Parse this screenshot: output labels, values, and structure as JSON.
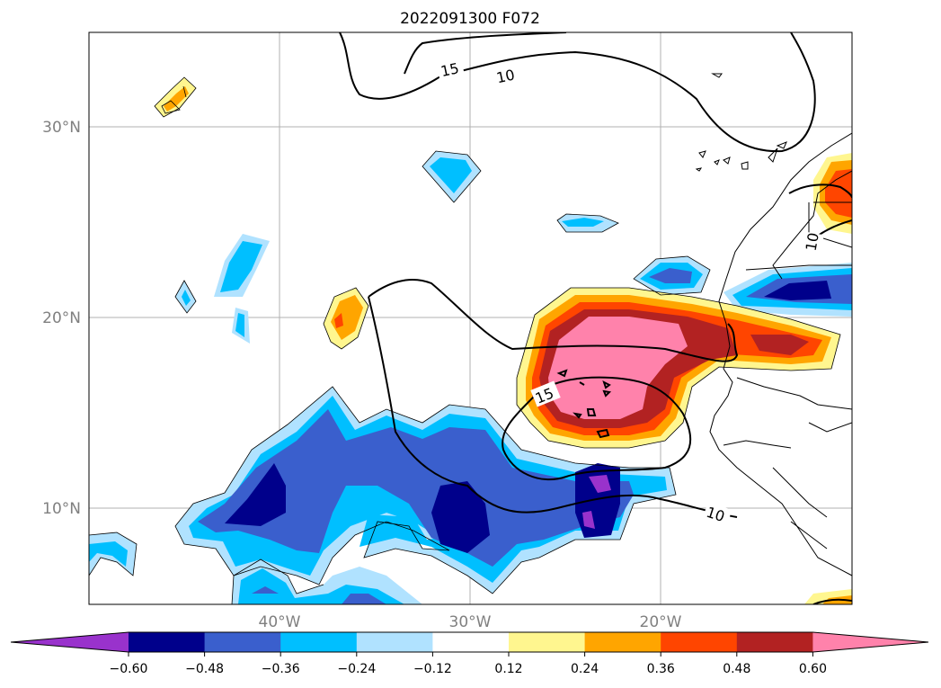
{
  "title": "2022091300 F072",
  "lat_ticks": [
    "30°N",
    "20°N",
    "10°N"
  ],
  "lon_ticks": [
    "40°W",
    "30°W",
    "20°W"
  ],
  "contour_labels": [
    "15",
    "10",
    "15",
    "10",
    "10"
  ],
  "colorbar": {
    "colors": [
      "#9932cc",
      "#00008b",
      "#3a5fcd",
      "#00bfff",
      "#b0e2ff",
      "#ffffff",
      "#fff68f",
      "#ffa500",
      "#ff4500",
      "#b22222",
      "#ff82ab"
    ],
    "tick_labels": [
      "−0.60",
      "−0.48",
      "−0.36",
      "−0.24",
      "−0.12",
      "0.12",
      "0.24",
      "0.36",
      "0.48",
      "0.60"
    ]
  }
}
